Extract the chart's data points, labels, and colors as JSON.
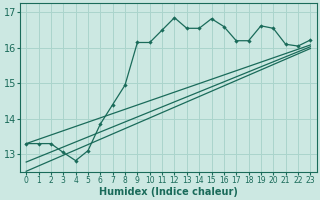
{
  "xlabel": "Humidex (Indice chaleur)",
  "bg_color": "#cce8e2",
  "grid_color": "#aad4cc",
  "line_color": "#1a6b5a",
  "xlim": [
    -0.5,
    23.5
  ],
  "ylim": [
    12.5,
    17.25
  ],
  "yticks": [
    13,
    14,
    15,
    16,
    17
  ],
  "xticks": [
    0,
    1,
    2,
    3,
    4,
    5,
    6,
    7,
    8,
    9,
    10,
    11,
    12,
    13,
    14,
    15,
    16,
    17,
    18,
    19,
    20,
    21,
    22,
    23
  ],
  "series1_x": [
    0,
    1,
    2,
    3,
    4,
    5,
    6,
    7,
    8,
    9,
    10,
    11,
    12,
    13,
    14,
    15,
    16,
    17,
    18,
    19,
    20,
    21,
    22,
    23
  ],
  "series1_y": [
    13.3,
    13.3,
    13.3,
    13.05,
    12.82,
    13.1,
    13.85,
    14.4,
    14.95,
    16.15,
    16.15,
    16.5,
    16.85,
    16.55,
    16.55,
    16.82,
    16.6,
    16.2,
    16.2,
    16.62,
    16.55,
    16.1,
    16.05,
    16.22
  ],
  "trend1_x": [
    0,
    23
  ],
  "trend1_y": [
    13.3,
    16.08
  ],
  "trend2_x": [
    0,
    23
  ],
  "trend2_y": [
    12.52,
    15.98
  ],
  "trend3_x": [
    0,
    23
  ],
  "trend3_y": [
    12.78,
    16.03
  ]
}
